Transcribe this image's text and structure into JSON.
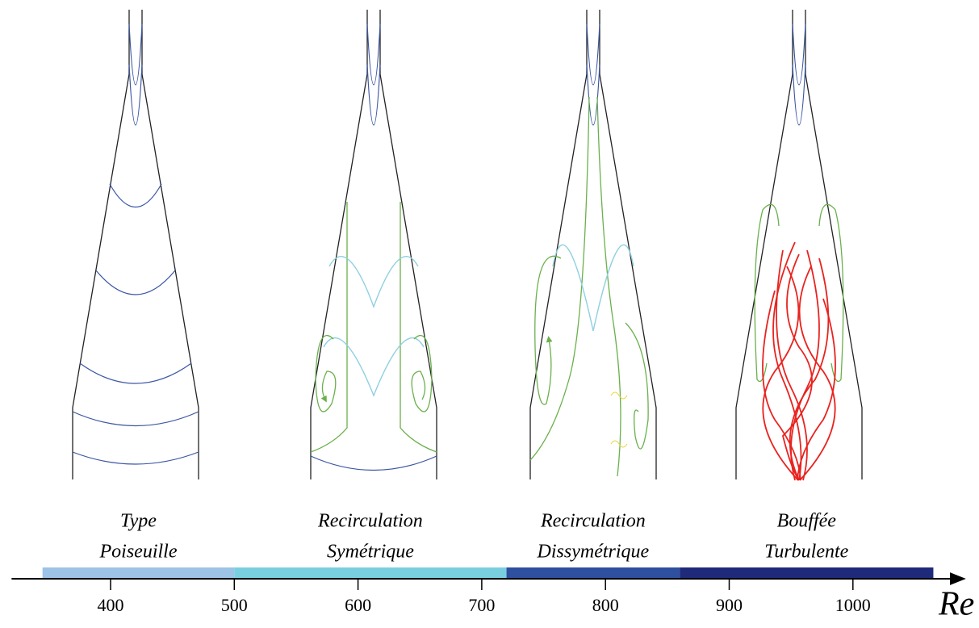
{
  "axis": {
    "label": "Re",
    "xlim": [
      320,
      1090
    ],
    "xticks": [
      400,
      500,
      600,
      700,
      800,
      900,
      1000
    ]
  },
  "regimes": [
    {
      "label": [
        "Type",
        "Poiseuille"
      ],
      "range": [
        345,
        500
      ],
      "color": "#9dc3e6"
    },
    {
      "label": [
        "Recirculation",
        "Symétrique"
      ],
      "range": [
        500,
        720
      ],
      "color": "#79cfe0"
    },
    {
      "label": [
        "Recirculation",
        "Dissymétrique"
      ],
      "range": [
        720,
        860
      ],
      "color": "#2f4f9f"
    },
    {
      "label": [
        "Bouffée",
        "Turbulente"
      ],
      "range": [
        860,
        1065
      ],
      "color": "#1f2a7a"
    }
  ]
}
